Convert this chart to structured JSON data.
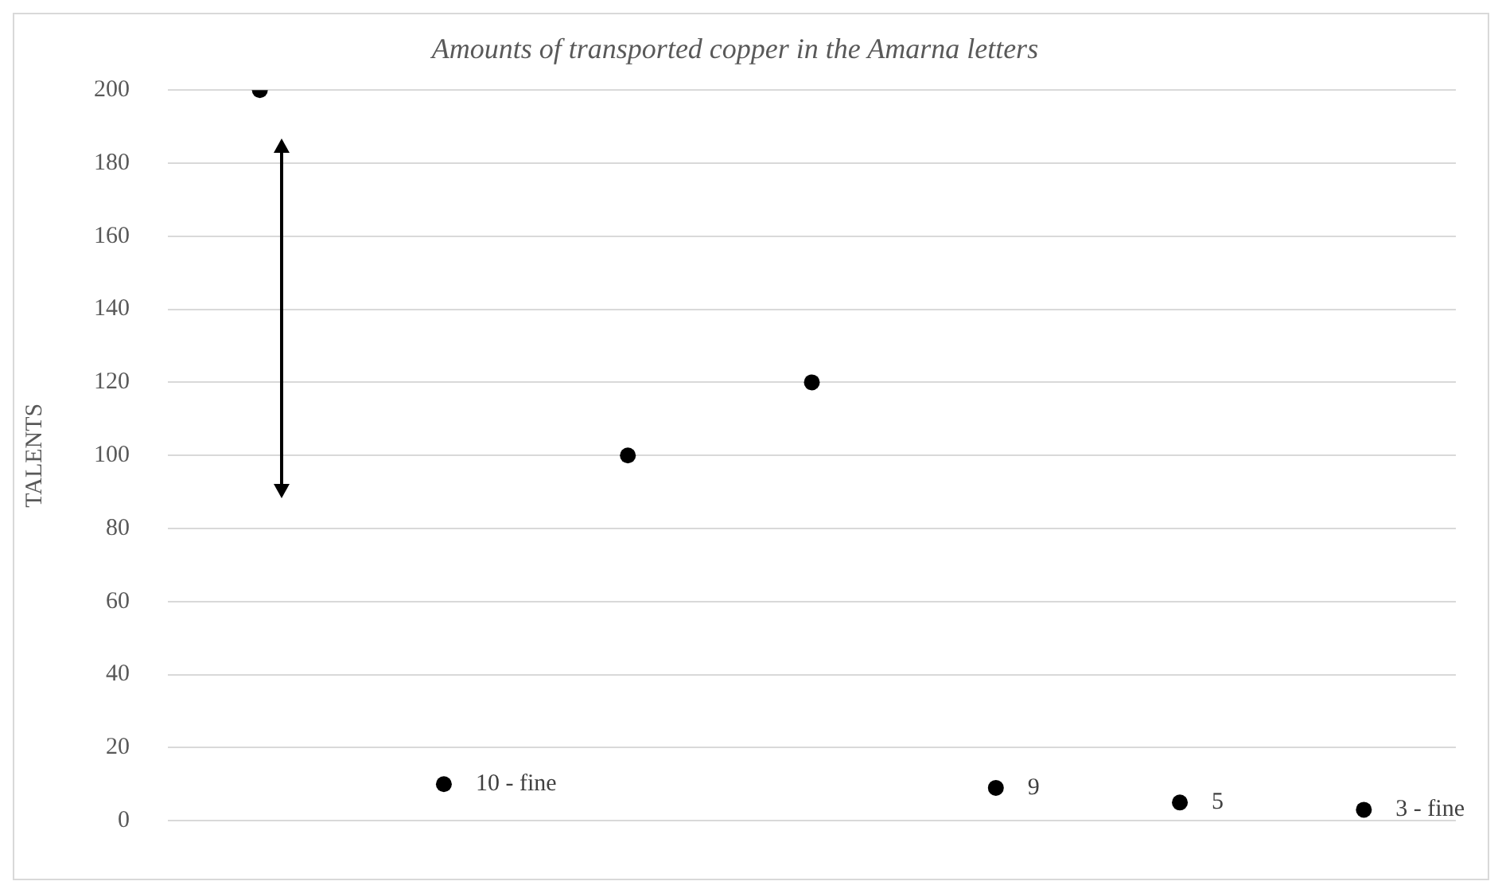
{
  "chart_data": {
    "type": "scatter",
    "title": "Amounts of transported copper in the Amarna letters",
    "ylabel": "TALENTS",
    "categories": [
      null,
      null,
      null,
      null,
      null,
      null,
      null
    ],
    "series": [
      {
        "color": "#000000",
        "values": [
          200,
          10,
          100,
          120,
          9,
          5,
          3
        ],
        "value_labels": [
          null,
          "10 - fine",
          null,
          null,
          "9",
          "5",
          "3 - fine"
        ]
      }
    ],
    "ylim": [
      0,
      200
    ],
    "yticks": [
      0,
      20,
      40,
      60,
      80,
      100,
      120,
      140,
      160,
      180,
      200
    ],
    "grid": "y",
    "legend": false,
    "marker": "circle"
  }
}
